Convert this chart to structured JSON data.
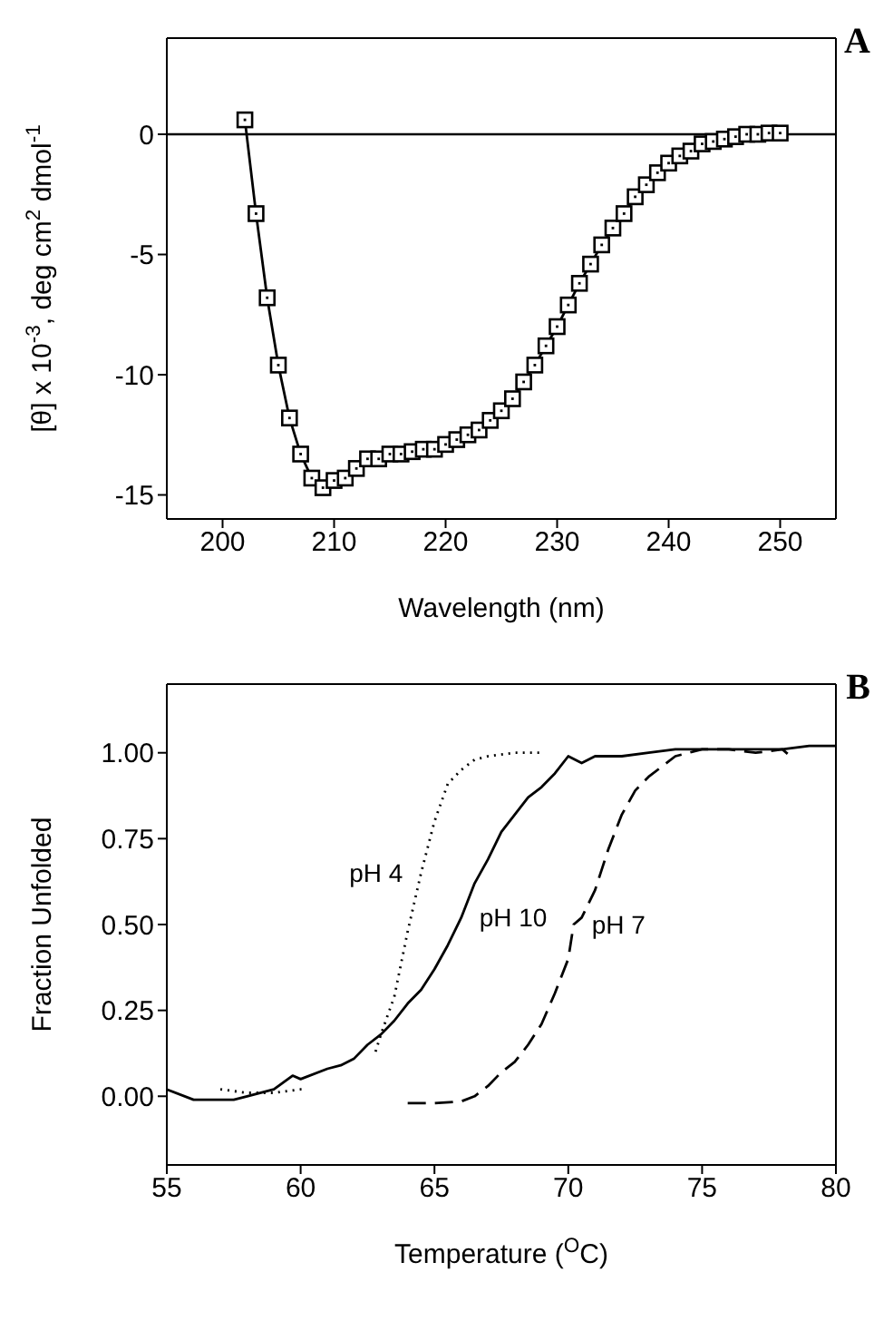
{
  "chart_data": [
    {
      "type": "line",
      "annotations": [
        "A"
      ],
      "xlabel": "Wavelength (nm)",
      "ylabel": "[θ] x 10$^{-3}$, deg cm$^{2}$ dmol$^{-1}$",
      "xlim": [
        195,
        255
      ],
      "xticks": [
        200,
        210,
        220,
        230,
        240,
        250
      ],
      "ylim": [
        -16,
        4
      ],
      "yticks": [
        0,
        -5,
        -10,
        -15
      ],
      "marker": "square",
      "ref_lines": [
        {
          "axis": "y",
          "value": 0,
          "color": "#000000"
        }
      ],
      "series": [
        {
          "color": "#000000",
          "line_style": "solid",
          "x": [
            202,
            203,
            204,
            205,
            206,
            207,
            208,
            209,
            210,
            211,
            212,
            213,
            214,
            215,
            216,
            217,
            218,
            219,
            220,
            221,
            222,
            223,
            224,
            225,
            226,
            227,
            228,
            229,
            230,
            231,
            232,
            233,
            234,
            235,
            236,
            237,
            238,
            239,
            240,
            241,
            242,
            243,
            244,
            245,
            246,
            247,
            248,
            249,
            250
          ],
          "values": [
            0.6,
            -3.3,
            -6.8,
            -9.6,
            -11.8,
            -13.3,
            -14.3,
            -14.7,
            -14.4,
            -14.3,
            -13.9,
            -13.5,
            -13.5,
            -13.3,
            -13.3,
            -13.2,
            -13.1,
            -13.1,
            -12.9,
            -12.7,
            -12.5,
            -12.3,
            -11.9,
            -11.5,
            -11.0,
            -10.3,
            -9.6,
            -8.8,
            -8.0,
            -7.1,
            -6.2,
            -5.4,
            -4.6,
            -3.9,
            -3.3,
            -2.6,
            -2.1,
            -1.6,
            -1.2,
            -0.9,
            -0.7,
            -0.4,
            -0.3,
            -0.2,
            -0.1,
            0,
            0,
            0.05,
            0.05
          ]
        }
      ]
    },
    {
      "type": "line",
      "annotations": [
        "B"
      ],
      "xlabel": "Temperature ($^{O}$C)",
      "ylabel": "Fraction Unfolded",
      "xlim": [
        55,
        80
      ],
      "xticks": [
        55,
        60,
        65,
        70,
        75,
        80
      ],
      "ylim": [
        -0.2,
        1.2
      ],
      "yticks": [
        {
          "value": 0,
          "label": "0.00"
        },
        {
          "value": 0.25,
          "label": "0.25"
        },
        {
          "value": 0.5,
          "label": "0.50"
        },
        {
          "value": 0.75,
          "label": "0.75"
        },
        {
          "value": 1,
          "label": "1.00"
        }
      ],
      "marker": "none",
      "series": [
        {
          "name": "pH 4",
          "color": "#000000",
          "line_style": "dotted",
          "x": [
            57,
            58,
            59,
            60,
            60.2,
            61.5,
            62.8,
            63,
            63.5,
            64,
            64.5,
            65,
            65.5,
            66,
            66.5,
            67,
            68,
            69
          ],
          "values": [
            0.02,
            0.01,
            0.01,
            0.02,
            0.02,
            null,
            0.13,
            0.18,
            0.29,
            0.48,
            0.65,
            0.8,
            0.91,
            0.95,
            0.98,
            0.99,
            1.0,
            1.0
          ]
        },
        {
          "name": "pH 10",
          "color": "#000000",
          "line_style": "solid",
          "x": [
            55,
            56,
            57,
            57.5,
            58,
            59,
            59.7,
            60,
            61,
            61.5,
            62,
            62.5,
            63,
            63.5,
            64,
            64.5,
            65,
            65.5,
            66,
            66.5,
            67,
            67.5,
            68,
            68.5,
            69,
            69.5,
            70,
            70.5,
            71,
            72,
            73,
            74,
            75,
            76,
            77,
            78,
            79,
            80
          ],
          "values": [
            0.02,
            -0.01,
            -0.01,
            -0.01,
            0,
            0.02,
            0.06,
            0.05,
            0.08,
            0.09,
            0.11,
            0.15,
            0.18,
            0.22,
            0.27,
            0.31,
            0.37,
            0.44,
            0.52,
            0.62,
            0.69,
            0.77,
            0.82,
            0.87,
            0.9,
            0.94,
            0.99,
            0.97,
            0.99,
            0.99,
            1.0,
            1.01,
            1.01,
            1.01,
            1.01,
            1.01,
            1.02,
            1.02
          ]
        },
        {
          "name": "pH 7",
          "color": "#000000",
          "line_style": "dashed",
          "x": [
            64,
            65,
            66,
            66.5,
            67,
            67.5,
            68,
            68.5,
            69,
            69.5,
            70,
            70.2,
            70.5,
            71,
            71.5,
            72,
            72.5,
            73,
            73.5,
            74,
            75,
            76,
            77,
            78,
            78.3
          ],
          "values": [
            -0.02,
            -0.02,
            -0.015,
            0,
            0.03,
            0.07,
            0.1,
            0.15,
            0.21,
            0.3,
            0.4,
            0.5,
            0.52,
            0.6,
            0.72,
            0.82,
            0.89,
            0.93,
            0.96,
            0.99,
            1.01,
            1.01,
            1.0,
            1.01,
            0.99
          ]
        }
      ]
    }
  ]
}
